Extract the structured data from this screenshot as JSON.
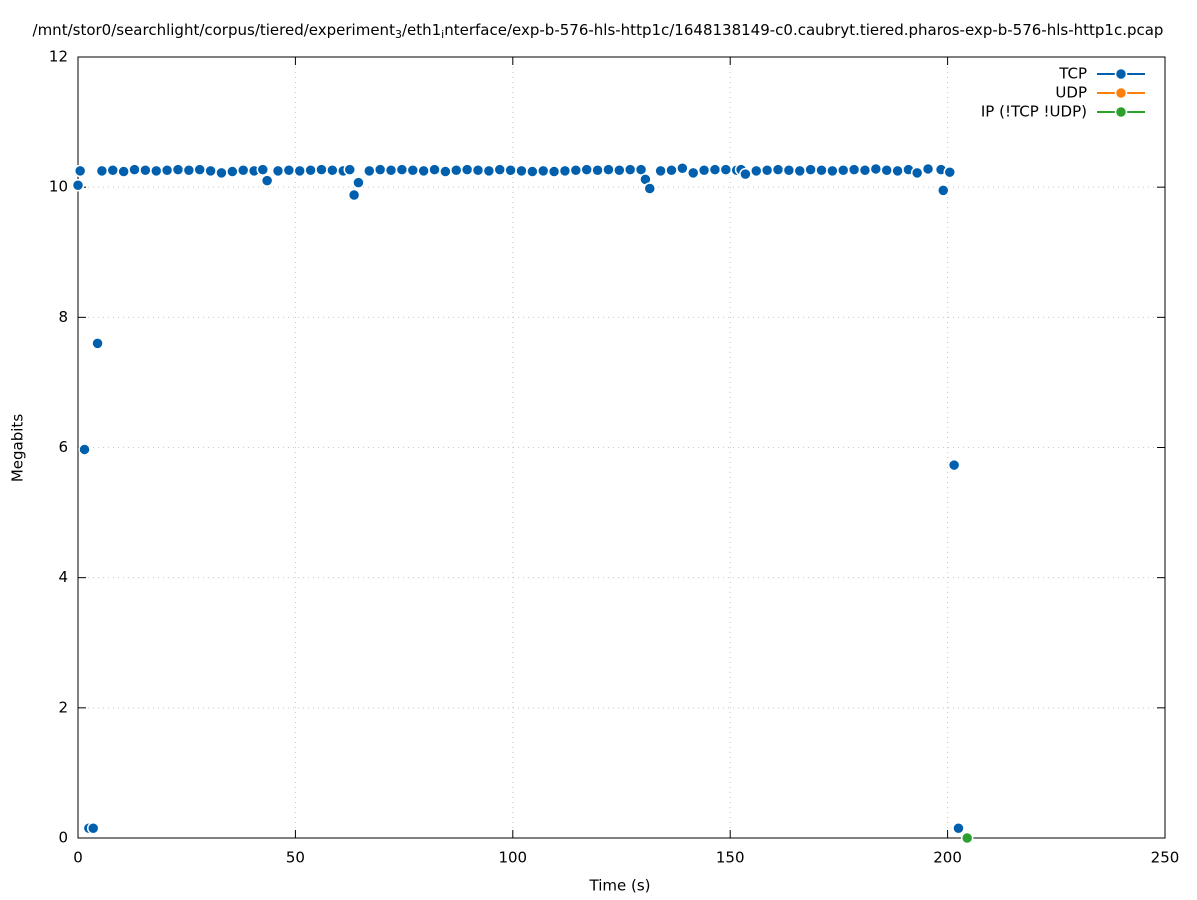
{
  "chart_data": {
    "type": "line",
    "title": [
      "/mnt/stor0/searchlight/corpus/tiered/experiment",
      "3",
      "/eth1",
      "i",
      "nterface/exp-b-576-hls-http1c/1648138149-c0.caubryt.tiered.pharos-exp-b-576-hls-http1c.pcap"
    ],
    "x_label": "Time (s)",
    "y_label": "Megabits",
    "xlim": [
      0,
      250
    ],
    "xticks": [
      0,
      50,
      100,
      150,
      200,
      250
    ],
    "ylim": [
      0,
      12
    ],
    "yticks": [
      0,
      2,
      4,
      6,
      8,
      10,
      12
    ],
    "grid": true,
    "legend": "top-right",
    "series": [
      {
        "name": "TCP",
        "color": "#0060ad",
        "x": [
          0,
          0.5,
          1.5,
          2.5,
          3.5,
          4.5,
          5.5,
          8,
          10.5,
          13,
          15.5,
          18,
          20.5,
          23,
          25.5,
          28,
          30.5,
          33,
          35.5,
          38,
          40.5,
          42.5,
          43.5,
          46,
          48.5,
          51,
          53.5,
          56,
          58.5,
          61,
          62.5,
          63.5,
          64.5,
          67,
          69.5,
          72,
          74.5,
          77,
          79.5,
          82,
          84.5,
          87,
          89.5,
          92,
          94.5,
          97,
          99.5,
          102,
          104.5,
          107,
          109.5,
          112,
          114.5,
          117,
          119.5,
          122,
          124.5,
          127,
          129.5,
          130.5,
          131.5,
          134,
          136.5,
          139,
          141.5,
          144,
          146.5,
          149,
          151.5,
          152.5,
          153.5,
          156,
          158.5,
          161,
          163.5,
          166,
          168.5,
          171,
          173.5,
          176,
          178.5,
          181,
          183.5,
          186,
          188.5,
          191,
          193,
          195.5,
          198.5,
          199,
          200.5,
          201.5,
          202.5
        ],
        "values": [
          10.03,
          10.25,
          5.97,
          0.15,
          0.15,
          7.6,
          10.25,
          10.26,
          10.24,
          10.27,
          10.26,
          10.25,
          10.26,
          10.27,
          10.26,
          10.27,
          10.25,
          10.22,
          10.24,
          10.26,
          10.25,
          10.27,
          10.1,
          10.25,
          10.26,
          10.25,
          10.26,
          10.27,
          10.26,
          10.25,
          10.27,
          9.88,
          10.07,
          10.25,
          10.27,
          10.26,
          10.27,
          10.26,
          10.25,
          10.27,
          10.24,
          10.26,
          10.27,
          10.26,
          10.25,
          10.27,
          10.26,
          10.25,
          10.24,
          10.25,
          10.24,
          10.25,
          10.26,
          10.27,
          10.26,
          10.27,
          10.26,
          10.27,
          10.27,
          10.12,
          9.98,
          10.25,
          10.26,
          10.29,
          10.22,
          10.26,
          10.27,
          10.27,
          10.26,
          10.27,
          10.2,
          10.25,
          10.26,
          10.27,
          10.26,
          10.25,
          10.27,
          10.26,
          10.25,
          10.26,
          10.27,
          10.26,
          10.28,
          10.26,
          10.25,
          10.27,
          10.22,
          10.28,
          10.27,
          9.95,
          10.23,
          5.73,
          0.15
        ]
      },
      {
        "name": "UDP",
        "color": "#ff7f0e",
        "x": [],
        "values": []
      },
      {
        "name": "IP (!TCP  !UDP)",
        "color": "#2ca02c",
        "x": [
          204.5
        ],
        "values": [
          0
        ]
      }
    ]
  }
}
